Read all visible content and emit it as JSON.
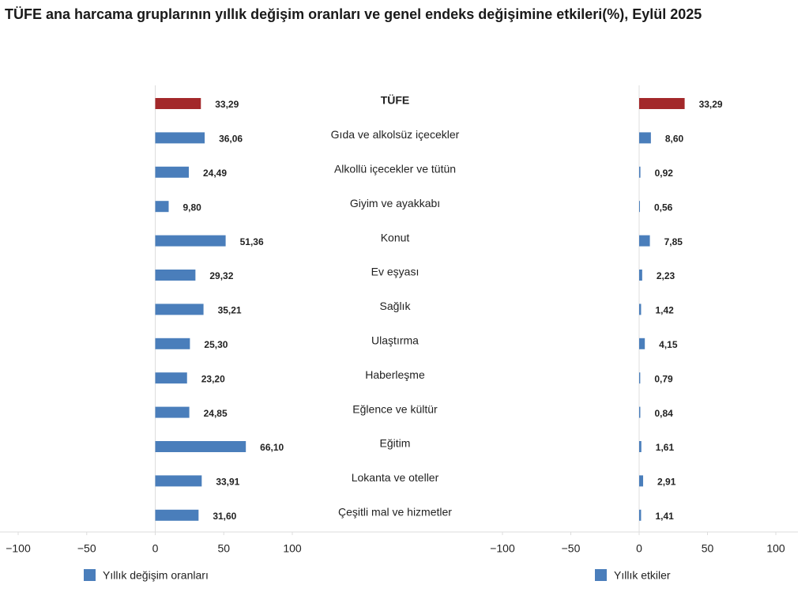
{
  "chart_data": {
    "type": "bar",
    "title": "TÜFE ana harcama gruplarının yıllık değişim oranları ve genel endeks değişimine etkileri(%), Eylül 2025",
    "categories": [
      "TÜFE",
      "Gıda ve alkolsüz içecekler",
      "Alkollü içecekler ve tütün",
      "Giyim ve ayakkabı",
      "Konut",
      "Ev eşyası",
      "Sağlık",
      "Ulaştırma",
      "Haberleşme",
      "Eğlence ve kültür",
      "Eğitim",
      "Lokanta ve oteller",
      "Çeşitli mal ve hizmetler"
    ],
    "xlim": [
      -100,
      100
    ],
    "xticks": [
      {
        "value": -100,
        "label": "−100"
      },
      {
        "value": -50,
        "label": "−50"
      },
      0,
      50,
      100
    ],
    "series": [
      {
        "name": "Yıllık değişim oranları",
        "color": "#4a7ebb",
        "colors": [
          "#a3282a",
          "#4a7ebb",
          "#4a7ebb",
          "#4a7ebb",
          "#4a7ebb",
          "#4a7ebb",
          "#4a7ebb",
          "#4a7ebb",
          "#4a7ebb",
          "#4a7ebb",
          "#4a7ebb",
          "#4a7ebb",
          "#4a7ebb"
        ],
        "values": [
          33.29,
          36.06,
          24.49,
          9.8,
          51.36,
          29.32,
          35.21,
          25.3,
          23.2,
          24.85,
          66.1,
          33.91,
          31.6
        ],
        "value_labels": [
          "33,29",
          "36,06",
          "24,49",
          "9,80",
          "51,36",
          "29,32",
          "35,21",
          "25,30",
          "23,20",
          "24,85",
          "66,10",
          "33,91",
          "31,60"
        ]
      },
      {
        "name": "Yıllık etkiler",
        "color": "#4a7ebb",
        "colors": [
          "#a3282a",
          "#4a7ebb",
          "#4a7ebb",
          "#4a7ebb",
          "#4a7ebb",
          "#4a7ebb",
          "#4a7ebb",
          "#4a7ebb",
          "#4a7ebb",
          "#4a7ebb",
          "#4a7ebb",
          "#4a7ebb",
          "#4a7ebb"
        ],
        "values": [
          33.29,
          8.6,
          0.92,
          0.56,
          7.85,
          2.23,
          1.42,
          4.15,
          0.79,
          0.84,
          1.61,
          2.91,
          1.41
        ],
        "value_labels": [
          "33,29",
          "8,60",
          "0,92",
          "0,56",
          "7,85",
          "2,23",
          "1,42",
          "4,15",
          "0,79",
          "0,84",
          "1,61",
          "2,91",
          "1,41"
        ]
      }
    ]
  }
}
